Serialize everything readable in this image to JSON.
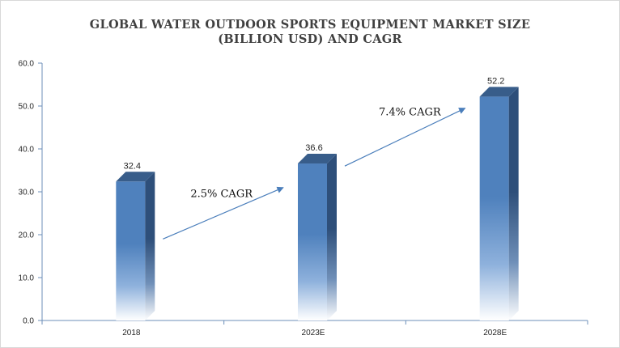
{
  "chart_data": {
    "type": "bar",
    "title_lines": [
      "GLOBAL WATER OUTDOOR SPORTS EQUIPMENT MARKET SIZE",
      "(BILLION USD) AND CAGR"
    ],
    "categories": [
      "2018",
      "2023E",
      "2028E"
    ],
    "values": [
      32.4,
      36.6,
      52.2
    ],
    "data_labels": [
      "32.4",
      "36.6",
      "52.2"
    ],
    "ylim": [
      0,
      60
    ],
    "yticks": [
      "0.0",
      "10.0",
      "20.0",
      "30.0",
      "40.0",
      "50.0",
      "60.0"
    ],
    "xlabel": "",
    "ylabel": "",
    "grid": false,
    "legend": "none",
    "bar_color": "#4f81bd",
    "bar_side_color": "#2e4f7a",
    "bar_top_color": "#385d8a",
    "annotations": [
      {
        "text": "2.5% CAGR",
        "from": "2018",
        "to": "2023E"
      },
      {
        "text": "7.4% CAGR",
        "from": "2023E",
        "to": "2028E"
      }
    ],
    "arrow_color": "#4a7ebb"
  }
}
